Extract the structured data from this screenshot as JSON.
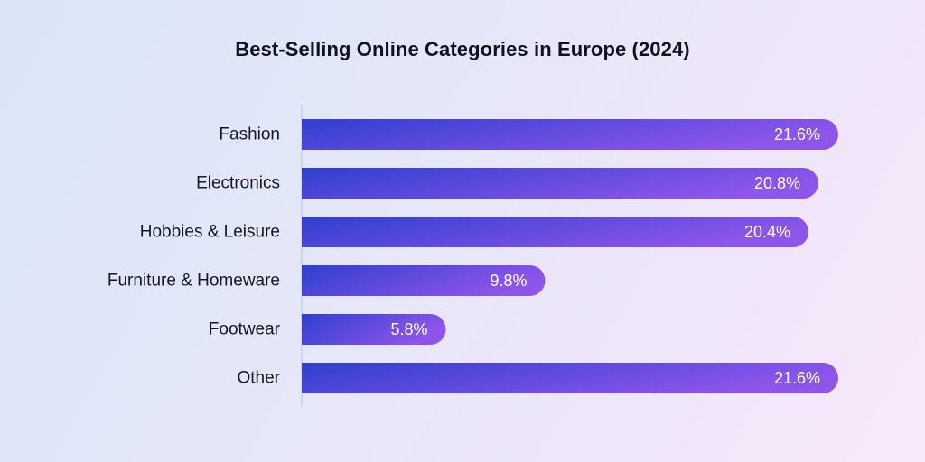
{
  "chart_data": {
    "type": "bar",
    "orientation": "horizontal",
    "title": "Best-Selling Online Categories in Europe (2024)",
    "categories": [
      "Fashion",
      "Electronics",
      "Hobbies & Leisure",
      "Furniture & Homeware",
      "Footwear",
      "Other"
    ],
    "values": [
      21.6,
      20.8,
      20.4,
      9.8,
      5.8,
      21.6
    ],
    "value_labels": [
      "21.6%",
      "20.8%",
      "20.4%",
      "9.8%",
      "5.8%",
      "21.6%"
    ],
    "unit": "%",
    "xlim": [
      0,
      21.6
    ],
    "grid": false,
    "legend": "none",
    "colors": {
      "bar_start": "#2f3fcf",
      "bar_end": "#8d55ea",
      "axis": "#c6cdf2"
    }
  }
}
